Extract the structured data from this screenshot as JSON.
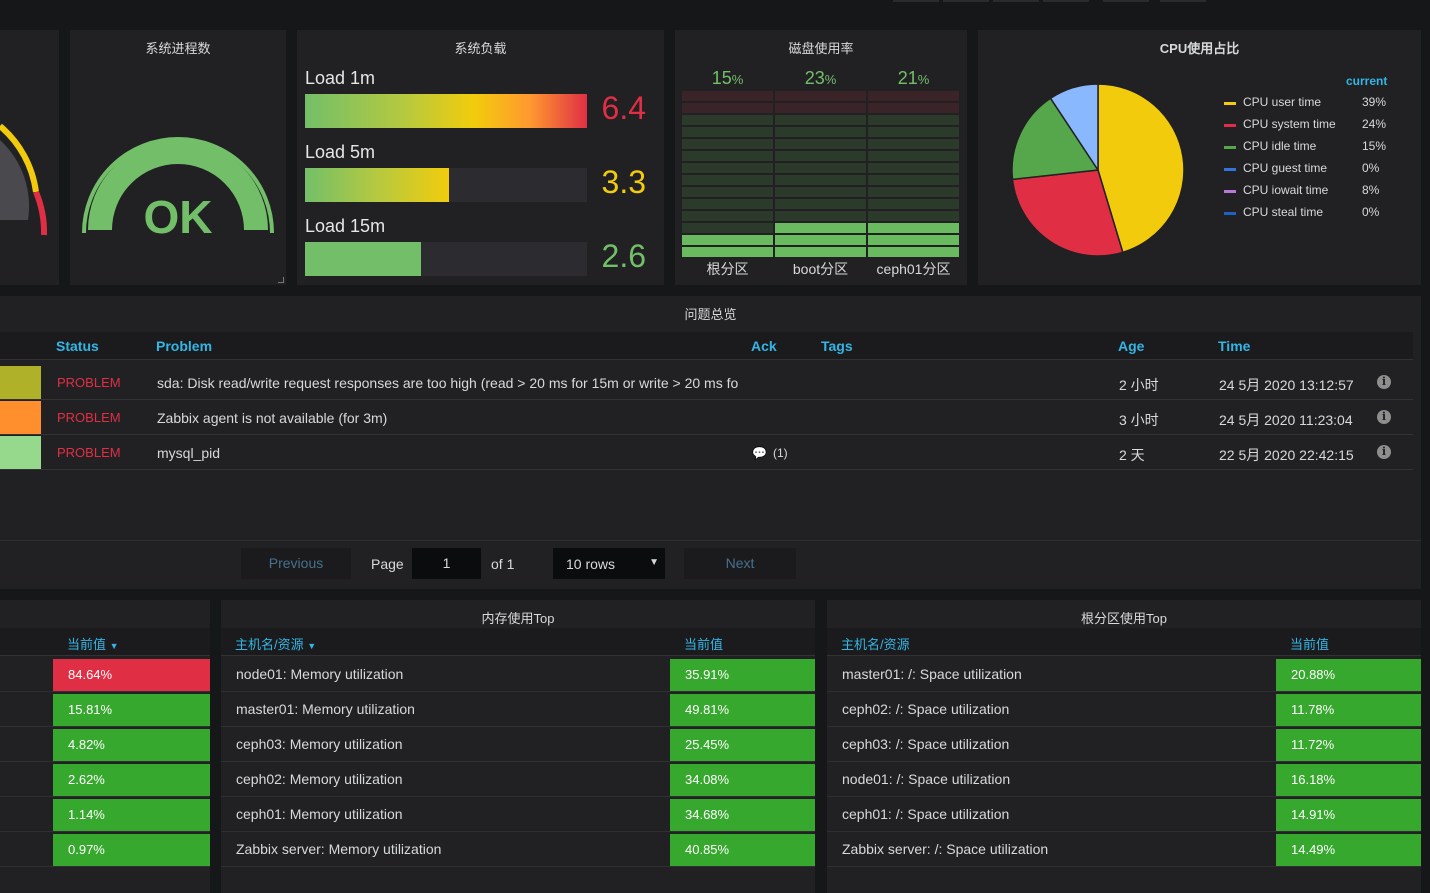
{
  "panels": {
    "process": {
      "title": "系统进程数",
      "status": "OK"
    },
    "load": {
      "title": "系统负载",
      "rows": [
        {
          "label": "Load 1m",
          "value": "6.4",
          "fraction": 1.0,
          "color": "#e02f44"
        },
        {
          "label": "Load 5m",
          "value": "3.3",
          "fraction": 0.51,
          "color": "#f2cc0c"
        },
        {
          "label": "Load 15m",
          "value": "2.6",
          "fraction": 0.41,
          "color": "#73bf69"
        }
      ]
    },
    "disk": {
      "title": "磁盘使用率",
      "columns": [
        {
          "percent": "15",
          "unit": "%",
          "label": "根分区",
          "level": 0.15
        },
        {
          "percent": "23",
          "unit": "%",
          "label": "boot分区",
          "level": 0.23
        },
        {
          "percent": "21",
          "unit": "%",
          "label": "ceph01分区",
          "level": 0.21
        }
      ]
    },
    "cpu": {
      "title": "CPU使用占比",
      "legend_header": "current",
      "legend": [
        {
          "name": "CPU user time",
          "value": "39%",
          "color": "#f2cc0c"
        },
        {
          "name": "CPU system time",
          "value": "24%",
          "color": "#e02f44"
        },
        {
          "name": "CPU idle time",
          "value": "15%",
          "color": "#56a64b"
        },
        {
          "name": "CPU guest time",
          "value": "0%",
          "color": "#3274d9"
        },
        {
          "name": "CPU iowait time",
          "value": "8%",
          "color": "#b877d9"
        },
        {
          "name": "CPU steal time",
          "value": "0%",
          "color": "#1f60c4"
        }
      ]
    }
  },
  "problems": {
    "title": "问题总览",
    "headers": {
      "status": "Status",
      "problem": "Problem",
      "ack": "Ack",
      "tags": "Tags",
      "age": "Age",
      "time": "Time"
    },
    "rows": [
      {
        "severity_color": "#afb228",
        "status": "PROBLEM",
        "problem": "sda: Disk read/write request responses are too high (read > 20 ms for 15m or write > 20 ms fo",
        "ack": "",
        "age": "2 小时",
        "time": "24 5月 2020 13:12:57"
      },
      {
        "severity_color": "#ff8f2d",
        "status": "PROBLEM",
        "problem": "Zabbix agent is not available (for 3m)",
        "ack": "",
        "age": "3 小时",
        "time": "24 5月 2020 11:23:04"
      },
      {
        "severity_color": "#96d98d",
        "status": "PROBLEM",
        "problem": "mysql_pid",
        "ack": "(1)",
        "age": "2 天",
        "time": "22 5月 2020 22:42:15"
      }
    ],
    "pager": {
      "previous": "Previous",
      "page": "Page",
      "page_value": "1",
      "of": "of 1",
      "rows": "10 rows",
      "next": "Next"
    }
  },
  "cpu_top": {
    "header_value": "当前值",
    "values": [
      "84.64%",
      "15.81%",
      "4.82%",
      "2.62%",
      "1.14%",
      "0.97%"
    ],
    "colors": [
      "#e02f44",
      "#37a82e",
      "#37a82e",
      "#37a82e",
      "#37a82e",
      "#37a82e"
    ]
  },
  "mem_top": {
    "title": "内存使用Top",
    "header_name": "主机名/资源",
    "header_value": "当前值",
    "rows": [
      {
        "name": "node01: Memory utilization",
        "value": "35.91%"
      },
      {
        "name": "master01: Memory utilization",
        "value": "49.81%"
      },
      {
        "name": "ceph03: Memory utilization",
        "value": "25.45%"
      },
      {
        "name": "ceph02: Memory utilization",
        "value": "34.08%"
      },
      {
        "name": "ceph01: Memory utilization",
        "value": "34.68%"
      },
      {
        "name": "Zabbix server: Memory utilization",
        "value": "40.85%"
      }
    ]
  },
  "root_top": {
    "title": "根分区使用Top",
    "header_name": "主机名/资源",
    "header_value": "当前值",
    "rows": [
      {
        "name": "master01: /: Space utilization",
        "value": "20.88%"
      },
      {
        "name": "ceph02: /: Space utilization",
        "value": "11.78%"
      },
      {
        "name": "ceph03: /: Space utilization",
        "value": "11.72%"
      },
      {
        "name": "node01: /: Space utilization",
        "value": "16.18%"
      },
      {
        "name": "ceph01: /: Space utilization",
        "value": "14.91%"
      },
      {
        "name": "Zabbix server: /: Space utilization",
        "value": "14.49%"
      }
    ]
  }
}
